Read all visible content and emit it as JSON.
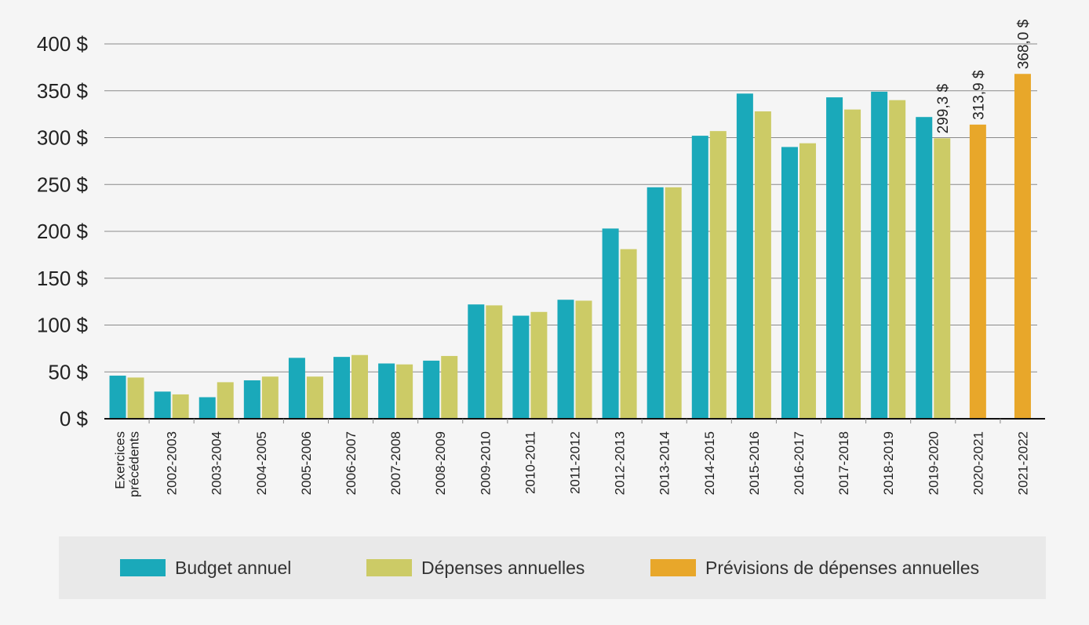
{
  "chart_data": {
    "type": "bar",
    "title": "",
    "xlabel": "",
    "ylabel": "",
    "ylim": [
      0,
      400
    ],
    "yticks": [
      {
        "value": 0,
        "label": "0 $"
      },
      {
        "value": 50,
        "label": "50 $"
      },
      {
        "value": 100,
        "label": "100 $"
      },
      {
        "value": 150,
        "label": "150 $"
      },
      {
        "value": 200,
        "label": "200 $"
      },
      {
        "value": 250,
        "label": "250 $"
      },
      {
        "value": 300,
        "label": "300 $"
      },
      {
        "value": 350,
        "label": "350 $"
      },
      {
        "value": 400,
        "label": "400 $"
      }
    ],
    "grid": true,
    "legend_position": "bottom",
    "categories": [
      "Exercices précédents",
      "2002-2003",
      "2003-2004",
      "2004-2005",
      "2005-2006",
      "2006-2007",
      "2007-2008",
      "2008-2009",
      "2009-2010",
      "2010-2011",
      "2011-2012",
      "2012-2013",
      "2013-2014",
      "2014-2015",
      "2015-2016",
      "2016-2017",
      "2017-2018",
      "2018-2019",
      "2019-2020",
      "2020-2021",
      "2021-2022"
    ],
    "series": [
      {
        "name": "Budget annuel",
        "color": "#1aa9ba",
        "values": [
          46,
          29,
          23,
          41,
          65,
          66,
          59,
          62,
          122,
          110,
          127,
          203,
          247,
          302,
          347,
          290,
          343,
          349,
          322,
          null,
          null
        ]
      },
      {
        "name": "Dépenses annuelles",
        "color": "#cccb66",
        "values": [
          44,
          26,
          39,
          45,
          45,
          68,
          58,
          67,
          121,
          114,
          126,
          181,
          247,
          307,
          328,
          294,
          330,
          340,
          299.3,
          null,
          null
        ]
      },
      {
        "name": "Prévisions de dépenses annuelles",
        "color": "#e8a72a",
        "values": [
          null,
          null,
          null,
          null,
          null,
          null,
          null,
          null,
          null,
          null,
          null,
          null,
          null,
          null,
          null,
          null,
          null,
          null,
          null,
          313.9,
          368.0
        ]
      }
    ],
    "data_labels": [
      {
        "category": "2019-2020",
        "series": "Dépenses annuelles",
        "text": "299,3 $"
      },
      {
        "category": "2020-2021",
        "series": "Prévisions de dépenses annuelles",
        "text": "313,9 $"
      },
      {
        "category": "2021-2022",
        "series": "Prévisions de dépenses annuelles",
        "text": "368,0 $"
      }
    ]
  }
}
